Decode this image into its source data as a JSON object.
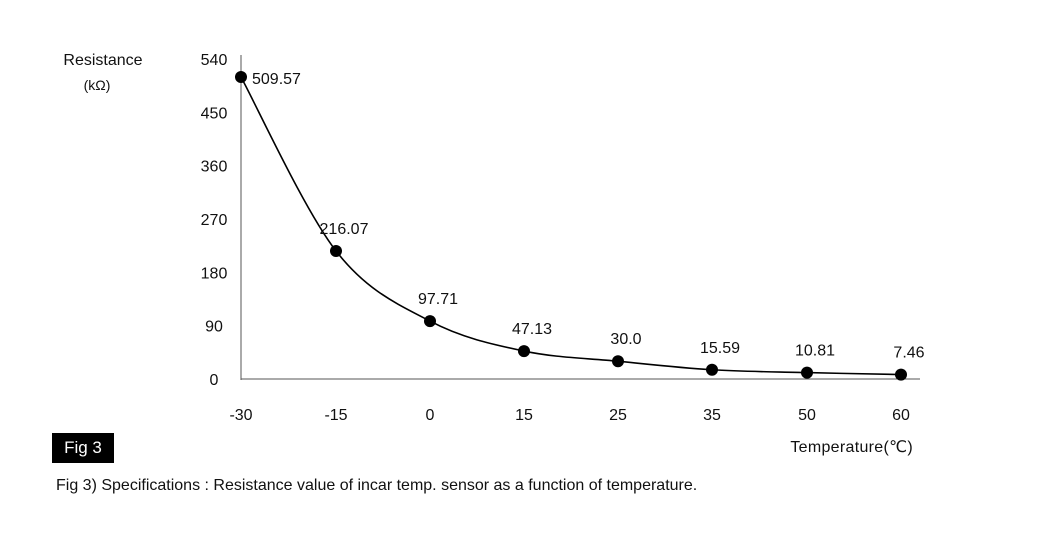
{
  "chart_data": {
    "type": "line",
    "title": "",
    "ylabel": "Resistance",
    "yunit": "(kΩ)",
    "xlabel": "Temperature(℃)",
    "ylim": [
      0,
      540
    ],
    "yticks": [
      "0",
      "90",
      "180",
      "270",
      "360",
      "450",
      "540"
    ],
    "x": [
      "-30",
      "-15",
      "0",
      "15",
      "25",
      "35",
      "50",
      "60"
    ],
    "values": [
      509.57,
      216.07,
      97.71,
      47.13,
      30.0,
      15.59,
      10.81,
      7.46
    ],
    "data_labels": [
      "509.57",
      "216.07",
      "97.71",
      "47.13",
      "30.0",
      "15.59",
      "10.81",
      "7.46"
    ],
    "grid": false,
    "legend": "none"
  },
  "figure": {
    "badge": "Fig 3",
    "caption": "Fig 3) Specifications : Resistance value of incar temp. sensor as a function of temperature."
  }
}
